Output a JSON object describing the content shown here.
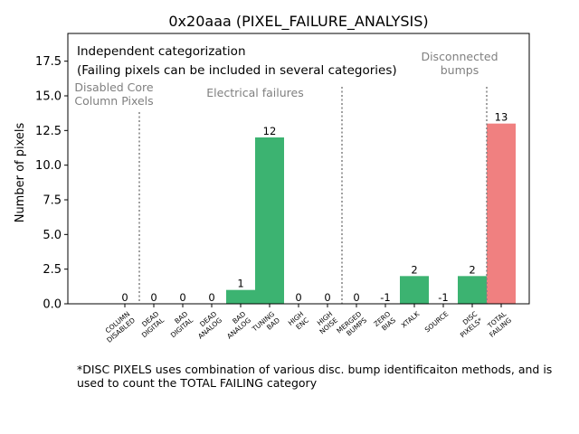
{
  "chart_data": {
    "type": "bar",
    "title": "0x20aaa (PIXEL_FAILURE_ANALYSIS)",
    "xlabel": "",
    "ylabel": "Number of pixels",
    "ylim": [
      0,
      19.5
    ],
    "yticks": [
      "0.0",
      "2.5",
      "5.0",
      "7.5",
      "10.0",
      "12.5",
      "15.0",
      "17.5"
    ],
    "ytick_values": [
      0,
      2.5,
      5,
      7.5,
      10,
      12.5,
      15,
      17.5
    ],
    "categories": [
      [
        "COLUMN",
        "DISABLED"
      ],
      [
        "DEAD",
        "DIGITAL"
      ],
      [
        "BAD",
        "DIGITAL"
      ],
      [
        "DEAD",
        "ANALOG"
      ],
      [
        "BAD",
        "ANALOG"
      ],
      [
        "TUNING",
        "BAD"
      ],
      [
        "HIGH",
        "ENC"
      ],
      [
        "HIGH",
        "NOISE"
      ],
      [
        "MERGED",
        "BUMPS"
      ],
      [
        "ZERO",
        "BIAS"
      ],
      [
        "XTALK"
      ],
      [
        "SOURCE"
      ],
      [
        "DISC",
        "PIXELS*"
      ],
      [
        "TOTAL",
        "FAILING"
      ]
    ],
    "values": [
      0,
      0,
      0,
      0,
      1,
      12,
      0,
      0,
      0,
      -1,
      2,
      -1,
      2,
      13
    ],
    "value_labels": [
      "0",
      "0",
      "0",
      "0",
      "1",
      "12",
      "0",
      "0",
      "0",
      "-1",
      "2",
      "-1",
      "2",
      "13"
    ],
    "bar_colors": [
      "#3cb371",
      "#3cb371",
      "#3cb371",
      "#3cb371",
      "#3cb371",
      "#3cb371",
      "#3cb371",
      "#3cb371",
      "#3cb371",
      "#3cb371",
      "#3cb371",
      "#3cb371",
      "#3cb371",
      "#f08080"
    ],
    "annotations": {
      "box_line1": "Independent categorization",
      "box_line2": "(Failing pixels can be included in several categories)",
      "group_disabled": [
        "Disabled Core",
        "Column Pixels"
      ],
      "group_electrical": [
        "Electrical failures"
      ],
      "group_disconnected": [
        "Disconnected",
        "bumps"
      ]
    },
    "separators_after_category": [
      0,
      7,
      12
    ],
    "grid": false,
    "legend": "none"
  },
  "footnote": "*DISC PIXELS uses combination of various disc. bump identificaiton methods, and is used to count the TOTAL FAILING category"
}
